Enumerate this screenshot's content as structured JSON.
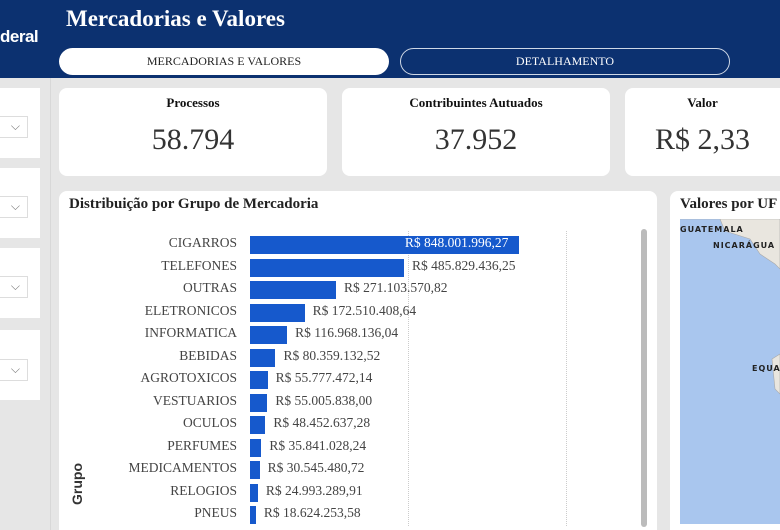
{
  "header": {
    "logo_text": "deral",
    "title": "Mercadorias e Valores",
    "tabs": [
      {
        "label": "MERCADORIAS E VALORES",
        "active": true
      },
      {
        "label": "DETALHAMENTO",
        "active": false
      }
    ]
  },
  "cards": [
    {
      "label": "Processos",
      "value": "58.794"
    },
    {
      "label": "Contribuintes Autuados",
      "value": "37.952"
    },
    {
      "label": "Valor",
      "value": "R$ 2,33"
    }
  ],
  "map": {
    "title": "Valores por UF",
    "labels": [
      "GUATEMALA",
      "NICARÁGUA",
      "EQUA"
    ]
  },
  "chart_data": {
    "type": "bar",
    "orientation": "horizontal",
    "title": "Distribuição por Grupo de Mercadoria",
    "ylabel": "Grupo",
    "xlim": [
      0,
      1000000000
    ],
    "grid": true,
    "categories": [
      "CIGARROS",
      "TELEFONES",
      "OUTRAS",
      "ELETRONICOS",
      "INFORMATICA",
      "BEBIDAS",
      "AGROTOXICOS",
      "VESTUARIOS",
      "OCULOS",
      "PERFUMES",
      "MEDICAMENTOS",
      "RELOGIOS",
      "PNEUS"
    ],
    "values": [
      848001996.27,
      485829436.25,
      271103570.82,
      172510408.64,
      116968136.04,
      80359132.52,
      55777472.14,
      55005838.0,
      48452637.28,
      35841028.24,
      30545480.72,
      24993289.91,
      18624253.58
    ],
    "labels": [
      "R$ 848.001.996,27",
      "R$ 485.829.436,25",
      "R$ 271.103.570,82",
      "R$ 172.510.408,64",
      "R$ 116.968.136,04",
      "R$ 80.359.132,52",
      "R$ 55.777.472,14",
      "R$ 55.005.838,00",
      "R$ 48.452.637,28",
      "R$ 35.841.028,24",
      "R$ 30.545.480,72",
      "R$ 24.993.289,91",
      "R$ 18.624.253,58"
    ],
    "color": "#1659cc"
  }
}
